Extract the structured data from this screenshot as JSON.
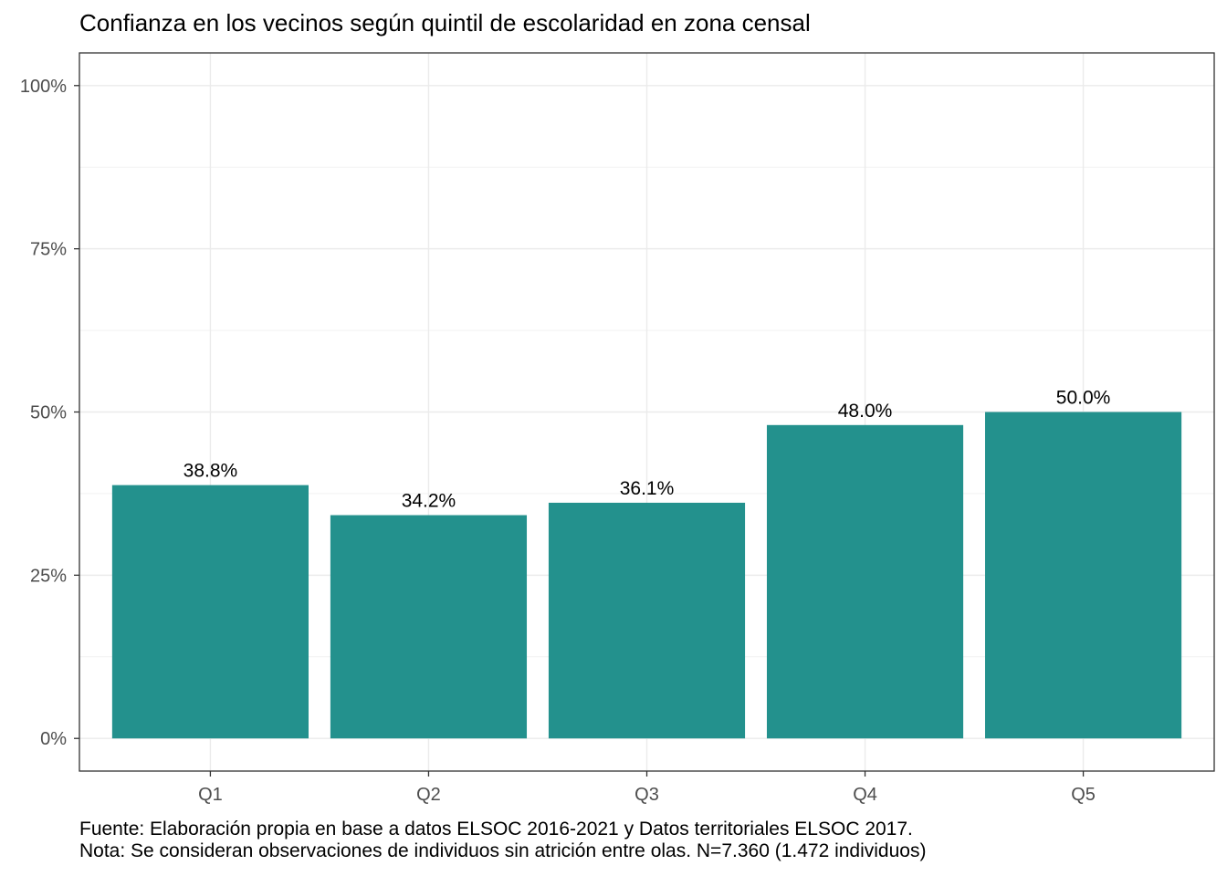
{
  "chart_data": {
    "type": "bar",
    "title": "Confianza en los vecinos según quintil de escolaridad en zona censal",
    "xlabel": "",
    "ylabel": "",
    "categories": [
      "Q1",
      "Q2",
      "Q3",
      "Q4",
      "Q5"
    ],
    "values": [
      38.8,
      34.2,
      36.1,
      48.0,
      50.0
    ],
    "value_labels": [
      "38.8%",
      "34.2%",
      "36.1%",
      "48.0%",
      "50.0%"
    ],
    "y_ticks": [
      0,
      25,
      50,
      75,
      100
    ],
    "y_tick_labels": [
      "0%",
      "25%",
      "50%",
      "75%",
      "100%"
    ],
    "ylim": [
      -5,
      105
    ],
    "grid": true,
    "bar_color": "#23918D",
    "caption": [
      "Fuente: Elaboración propia en base a datos ELSOC 2016-2021 y Datos territoriales ELSOC 2017.",
      "Nota: Se consideran observaciones de individuos sin atrición entre olas. N=7.360 (1.472 individuos)"
    ]
  }
}
